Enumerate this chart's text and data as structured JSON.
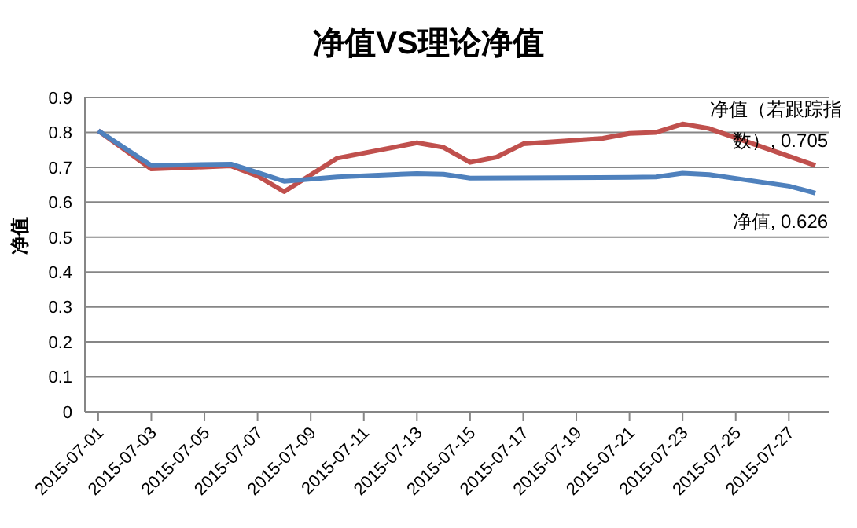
{
  "chart_data": {
    "type": "line",
    "title": "净值VS理论净值",
    "ylabel": "净值",
    "xlim": [
      "2015-06-30T12:00",
      "2015-07-28T12:00"
    ],
    "xticks": [
      "2015-07-01",
      "2015-07-03",
      "2015-07-05",
      "2015-07-07",
      "2015-07-09",
      "2015-07-11",
      "2015-07-13",
      "2015-07-15",
      "2015-07-17",
      "2015-07-19",
      "2015-07-21",
      "2015-07-23",
      "2015-07-25",
      "2015-07-27"
    ],
    "ylim": [
      0,
      0.9
    ],
    "yticks": [
      {
        "value": 0,
        "label": "0"
      },
      {
        "value": 0.1,
        "label": "0.1"
      },
      {
        "value": 0.2,
        "label": "0.2"
      },
      {
        "value": 0.3,
        "label": "0.3"
      },
      {
        "value": 0.4,
        "label": "0.4"
      },
      {
        "value": 0.5,
        "label": "0.5"
      },
      {
        "value": 0.6,
        "label": "0.6"
      },
      {
        "value": 0.7,
        "label": "0.7"
      },
      {
        "value": 0.8,
        "label": "0.8"
      },
      {
        "value": 0.9,
        "label": "0.9"
      }
    ],
    "grid": "y",
    "legend": false,
    "marker": "none",
    "line_style": "solid",
    "series": [
      {
        "color": "#c0504d",
        "x": [
          "2015-07-01",
          "2015-07-03",
          "2015-07-06",
          "2015-07-07",
          "2015-07-08",
          "2015-07-10",
          "2015-07-13",
          "2015-07-14",
          "2015-07-15",
          "2015-07-16",
          "2015-07-17",
          "2015-07-20",
          "2015-07-21",
          "2015-07-22",
          "2015-07-23",
          "2015-07-24",
          "2015-07-28"
        ],
        "values": [
          0.805,
          0.695,
          0.704,
          0.675,
          0.63,
          0.726,
          0.77,
          0.757,
          0.714,
          0.729,
          0.767,
          0.783,
          0.797,
          0.8,
          0.824,
          0.811,
          0.705
        ],
        "value_labels": [
          null,
          null,
          null,
          null,
          null,
          null,
          null,
          null,
          null,
          null,
          null,
          null,
          null,
          null,
          null,
          null,
          "净值（若跟踪指数）, 0.705"
        ]
      },
      {
        "color": "#4f81bd",
        "x": [
          "2015-07-01",
          "2015-07-03",
          "2015-07-06",
          "2015-07-07",
          "2015-07-08",
          "2015-07-10",
          "2015-07-13",
          "2015-07-14",
          "2015-07-15",
          "2015-07-21",
          "2015-07-22",
          "2015-07-23",
          "2015-07-24",
          "2015-07-27",
          "2015-07-28"
        ],
        "values": [
          0.805,
          0.705,
          0.709,
          0.685,
          0.66,
          0.672,
          0.682,
          0.68,
          0.669,
          0.671,
          0.672,
          0.683,
          0.679,
          0.646,
          0.626
        ],
        "value_labels": [
          null,
          null,
          null,
          null,
          null,
          null,
          null,
          null,
          null,
          null,
          null,
          null,
          null,
          null,
          "净值, 0.626"
        ]
      }
    ]
  }
}
